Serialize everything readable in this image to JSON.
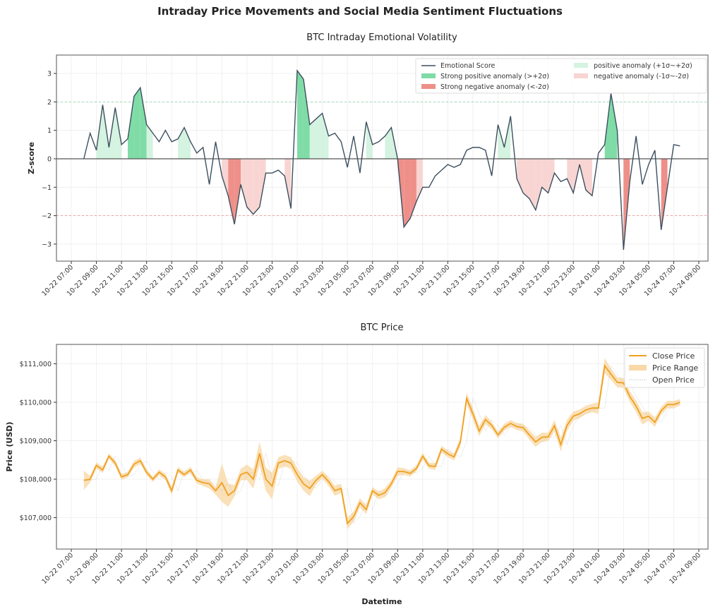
{
  "title": "Intraday Price Movements and Social Media Sentiment Fluctuations",
  "colors": {
    "emotion_line": "#3d4f5f",
    "strong_positive": "#7fdca6",
    "positive": "#d4f3e0",
    "strong_negative": "#ee9089",
    "negative": "#f8d5d2",
    "close_line": "#f0a020",
    "price_range": "#f9d9a8",
    "open_line": "#9aa8b5"
  },
  "chart_data": [
    {
      "type": "line",
      "title": "BTC Intraday Emotional Volatility",
      "xlabel": "",
      "ylabel": "Z-score",
      "ylim": [
        -3.6,
        3.6
      ],
      "yticks": [
        3,
        2,
        1,
        0,
        -1,
        -2,
        -3
      ],
      "xticks": [
        "10-22 07:00",
        "10-22 09:00",
        "10-22 11:00",
        "10-22 13:00",
        "10-22 15:00",
        "10-22 17:00",
        "10-22 19:00",
        "10-22 21:00",
        "10-22 23:00",
        "10-23 01:00",
        "10-23 03:00",
        "10-23 05:00",
        "10-23 07:00",
        "10-23 09:00",
        "10-23 11:00",
        "10-23 13:00",
        "10-23 15:00",
        "10-23 17:00",
        "10-23 19:00",
        "10-23 21:00",
        "10-23 23:00",
        "10-24 01:00",
        "10-24 03:00",
        "10-24 05:00",
        "10-24 07:00",
        "10-24 09:00"
      ],
      "grid": true,
      "reference_lines": [
        2,
        0,
        -2
      ],
      "legend_position": "top-right",
      "legend": [
        "Emotional Score",
        "Strong positive anomaly (>+2σ)",
        "Strong negative anomaly (<-2σ)",
        "positive anomaly (+1σ~+2σ)",
        "negative anomaly (-1σ~-2σ)"
      ],
      "x": [
        "10-22 08:00",
        "10-22 08:30",
        "10-22 09:00",
        "10-22 09:30",
        "10-22 10:00",
        "10-22 10:30",
        "10-22 11:00",
        "10-22 11:30",
        "10-22 12:00",
        "10-22 12:30",
        "10-22 13:00",
        "10-22 13:30",
        "10-22 14:00",
        "10-22 14:30",
        "10-22 15:00",
        "10-22 15:30",
        "10-22 16:00",
        "10-22 16:30",
        "10-22 17:00",
        "10-22 17:30",
        "10-22 18:00",
        "10-22 18:30",
        "10-22 19:00",
        "10-22 19:30",
        "10-22 20:00",
        "10-22 20:30",
        "10-22 21:00",
        "10-22 21:30",
        "10-22 22:00",
        "10-22 22:30",
        "10-22 23:00",
        "10-22 23:30",
        "10-23 00:00",
        "10-23 00:30",
        "10-23 01:00",
        "10-23 01:30",
        "10-23 02:00",
        "10-23 02:30",
        "10-23 03:00",
        "10-23 03:30",
        "10-23 04:00",
        "10-23 04:30",
        "10-23 05:00",
        "10-23 05:30",
        "10-23 06:00",
        "10-23 06:30",
        "10-23 07:00",
        "10-23 07:30",
        "10-23 08:00",
        "10-23 08:30",
        "10-23 09:00",
        "10-23 09:30",
        "10-23 10:00",
        "10-23 10:30",
        "10-23 11:00",
        "10-23 11:30",
        "10-23 12:00",
        "10-23 12:30",
        "10-23 13:00",
        "10-23 13:30",
        "10-23 14:00",
        "10-23 14:30",
        "10-23 15:00",
        "10-23 15:30",
        "10-23 16:00",
        "10-23 16:30",
        "10-23 17:00",
        "10-23 17:30",
        "10-23 18:00",
        "10-23 18:30",
        "10-23 19:00",
        "10-23 19:30",
        "10-23 20:00",
        "10-23 20:30",
        "10-23 21:00",
        "10-23 21:30",
        "10-23 22:00",
        "10-23 22:30",
        "10-23 23:00",
        "10-23 23:30",
        "10-24 00:00",
        "10-24 00:30",
        "10-24 01:00",
        "10-24 01:30",
        "10-24 02:00",
        "10-24 02:30",
        "10-24 03:00",
        "10-24 03:30",
        "10-24 04:00",
        "10-24 04:30",
        "10-24 05:00",
        "10-24 05:30",
        "10-24 06:00",
        "10-24 06:30",
        "10-24 07:00",
        "10-24 07:30"
      ],
      "series": [
        {
          "name": "Emotional Score",
          "values": [
            0.0,
            0.9,
            0.3,
            1.9,
            0.4,
            1.8,
            0.5,
            0.7,
            2.2,
            2.5,
            1.2,
            0.9,
            0.6,
            1.0,
            0.6,
            0.7,
            1.1,
            0.6,
            0.2,
            0.4,
            -0.9,
            0.6,
            -0.6,
            -1.3,
            -2.3,
            -0.9,
            -1.7,
            -1.95,
            -1.7,
            -0.5,
            -0.5,
            -0.4,
            -0.6,
            -1.75,
            3.1,
            2.8,
            1.2,
            1.4,
            1.6,
            0.8,
            0.9,
            0.6,
            -0.3,
            0.8,
            -0.5,
            1.3,
            0.5,
            0.6,
            0.8,
            1.1,
            0.0,
            -2.4,
            -2.1,
            -1.5,
            -1.0,
            -1.0,
            -0.6,
            -0.4,
            -0.2,
            -0.3,
            -0.2,
            0.3,
            0.4,
            0.4,
            0.3,
            -0.6,
            1.2,
            0.4,
            1.5,
            -0.7,
            -1.2,
            -1.4,
            -1.8,
            -1.0,
            -1.2,
            -0.5,
            -0.8,
            -0.7,
            -1.2,
            -0.2,
            -1.1,
            -1.3,
            0.2,
            0.5,
            2.3,
            1.0,
            -3.2,
            -0.8,
            0.8,
            -0.9,
            -0.2,
            0.3,
            -2.5,
            -1.0,
            0.5,
            0.45
          ]
        }
      ]
    },
    {
      "type": "line",
      "title": "BTC Price",
      "xlabel": "Datetime",
      "ylabel": "Price (USD)",
      "ylim": [
        106200,
        111500
      ],
      "yticks": [
        "$111,000",
        "$110,000",
        "$109,000",
        "$108,000",
        "$107,000"
      ],
      "ytick_values": [
        111000,
        110000,
        109000,
        108000,
        107000
      ],
      "grid": true,
      "legend_position": "top-right",
      "legend": [
        "Close Price",
        "Price Range",
        "Open Price"
      ],
      "close": [
        107970,
        108000,
        108360,
        108240,
        108600,
        108420,
        108060,
        108120,
        108390,
        108480,
        108180,
        108000,
        108180,
        108060,
        107700,
        108240,
        108120,
        108240,
        107970,
        107910,
        107880,
        107700,
        107910,
        107580,
        107700,
        108120,
        108180,
        108000,
        108670,
        108000,
        107820,
        108420,
        108480,
        108420,
        108120,
        107880,
        107760,
        107970,
        108120,
        107940,
        107700,
        107760,
        106850,
        107030,
        107390,
        107210,
        107700,
        107580,
        107650,
        107880,
        108200,
        108200,
        108150,
        108280,
        108600,
        108350,
        108330,
        108780,
        108660,
        108580,
        108970,
        110100,
        109700,
        109250,
        109550,
        109400,
        109150,
        109350,
        109450,
        109370,
        109340,
        109150,
        108970,
        109090,
        109100,
        109390,
        108900,
        109400,
        109640,
        109700,
        109800,
        109850,
        109850,
        110950,
        110730,
        110520,
        110500,
        110150,
        109900,
        109580,
        109640,
        109480,
        109780,
        109940,
        109940,
        110000
      ],
      "range_half_width": [
        250,
        90,
        80,
        80,
        70,
        80,
        80,
        70,
        90,
        80,
        80,
        70,
        80,
        80,
        110,
        80,
        70,
        80,
        80,
        90,
        120,
        100,
        500,
        300,
        150,
        150,
        200,
        250,
        300,
        300,
        350,
        150,
        150,
        150,
        180,
        180,
        200,
        120,
        100,
        120,
        130,
        120,
        150,
        130,
        120,
        120,
        100,
        100,
        120,
        100,
        110,
        90,
        80,
        80,
        90,
        80,
        90,
        90,
        90,
        90,
        120,
        150,
        150,
        130,
        120,
        100,
        90,
        90,
        90,
        90,
        100,
        120,
        130,
        120,
        110,
        150,
        180,
        150,
        120,
        110,
        110,
        110,
        150,
        200,
        150,
        130,
        130,
        140,
        150,
        160,
        120,
        120,
        100,
        100,
        100,
        80
      ]
    }
  ]
}
